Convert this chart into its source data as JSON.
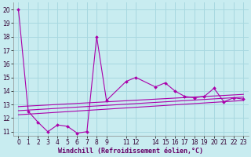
{
  "xlabel": "Windchill (Refroidissement éolien,°C)",
  "background_color": "#c8ecf0",
  "grid_color": "#a8d8e0",
  "line_color": "#aa00aa",
  "xlim": [
    -0.5,
    23.5
  ],
  "ylim": [
    10.7,
    20.5
  ],
  "yticks": [
    11,
    12,
    13,
    14,
    15,
    16,
    17,
    18,
    19,
    20
  ],
  "xticks": [
    0,
    1,
    2,
    3,
    4,
    5,
    6,
    7,
    8,
    9,
    11,
    12,
    14,
    15,
    16,
    17,
    18,
    19,
    20,
    21,
    22,
    23
  ],
  "xtick_labels": [
    "0",
    "1",
    "2",
    "3",
    "4",
    "5",
    "6",
    "7",
    "8",
    "9",
    "11",
    "12",
    "14",
    "15",
    "16",
    "17",
    "18",
    "19",
    "20",
    "21",
    "22",
    "23"
  ],
  "scatter_x": [
    0,
    1,
    2,
    3,
    4,
    5,
    6,
    7,
    8,
    9,
    11,
    12,
    14,
    15,
    16,
    17,
    18,
    19,
    20,
    21,
    22,
    23
  ],
  "scatter_y": [
    20.0,
    12.5,
    11.7,
    11.0,
    11.5,
    11.4,
    10.9,
    11.0,
    18.0,
    13.3,
    14.7,
    15.0,
    14.3,
    14.6,
    14.0,
    13.6,
    13.5,
    13.6,
    14.2,
    13.2,
    13.5,
    13.4
  ],
  "line1_x": [
    0,
    23
  ],
  "line1_y": [
    12.55,
    13.55
  ],
  "line2_x": [
    0,
    23
  ],
  "line2_y": [
    12.85,
    13.75
  ],
  "line3_x": [
    0,
    23
  ],
  "line3_y": [
    12.25,
    13.3
  ],
  "tick_fontsize": 5.5,
  "xlabel_fontsize": 6.0
}
